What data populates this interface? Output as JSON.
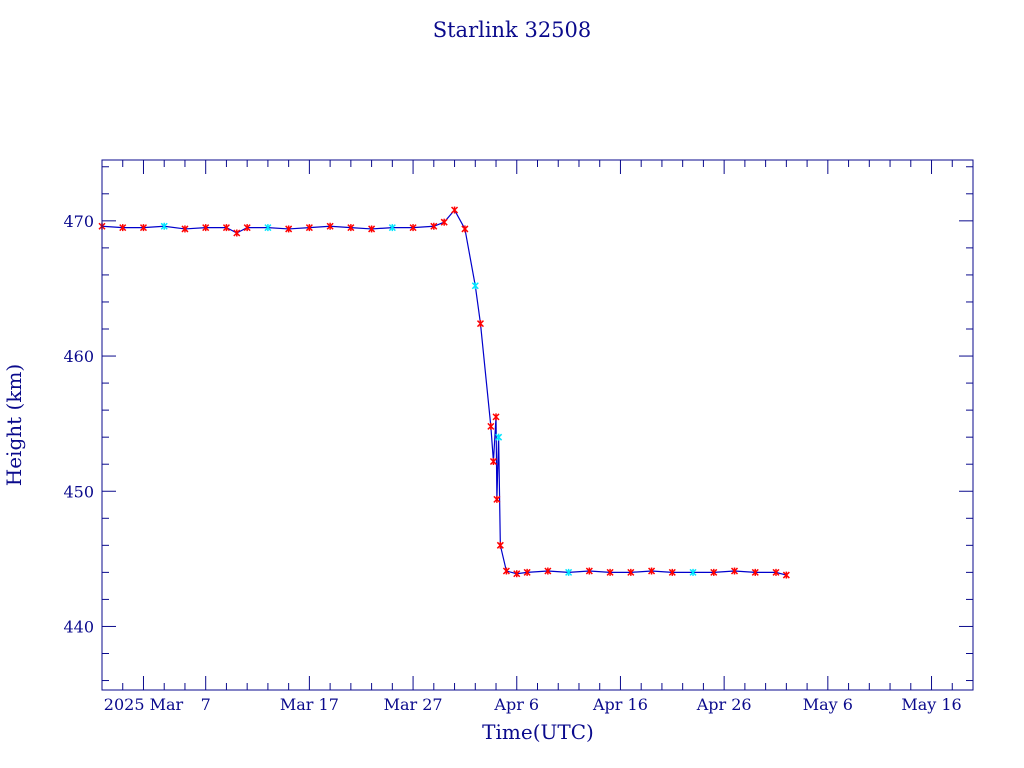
{
  "chart_data": {
    "type": "line",
    "title": "Starlink 32508",
    "xlabel": "Time(UTC)",
    "ylabel": "Height (km)",
    "x_unit": "days",
    "xlim": [
      "2025-02-25",
      "2025-05-20"
    ],
    "ylim": [
      435.3,
      474.5
    ],
    "grid": false,
    "legend": "none",
    "colors": {
      "axes": "#0a0a8c",
      "line": "#0000cc",
      "marker_primary": "#ff0000",
      "marker_secondary": "#00e5ff"
    },
    "x_ticks": [
      {
        "date": "2025-03-01",
        "label": "2025 Mar"
      },
      {
        "date": "2025-03-07",
        "label": "7"
      },
      {
        "date": "2025-03-17",
        "label": "Mar 17"
      },
      {
        "date": "2025-03-27",
        "label": "Mar 27"
      },
      {
        "date": "2025-04-06",
        "label": "Apr  6"
      },
      {
        "date": "2025-04-16",
        "label": "Apr 16"
      },
      {
        "date": "2025-04-26",
        "label": "Apr 26"
      },
      {
        "date": "2025-05-06",
        "label": "May  6"
      },
      {
        "date": "2025-05-16",
        "label": "May 16"
      }
    ],
    "y_ticks": [
      440,
      450,
      460,
      470
    ],
    "series": [
      {
        "points": [
          [
            "2025-02-25",
            469.6
          ],
          [
            "2025-02-27",
            469.5
          ],
          [
            "2025-03-01",
            469.5
          ],
          [
            "2025-03-03",
            469.6
          ],
          [
            "2025-03-05",
            469.4
          ],
          [
            "2025-03-07",
            469.5
          ],
          [
            "2025-03-09",
            469.5
          ],
          [
            "2025-03-10",
            469.1
          ],
          [
            "2025-03-11",
            469.5
          ],
          [
            "2025-03-13",
            469.5
          ],
          [
            "2025-03-15",
            469.4
          ],
          [
            "2025-03-17",
            469.5
          ],
          [
            "2025-03-19",
            469.6
          ],
          [
            "2025-03-21",
            469.5
          ],
          [
            "2025-03-23",
            469.4
          ],
          [
            "2025-03-25",
            469.5
          ],
          [
            "2025-03-27",
            469.5
          ],
          [
            "2025-03-29",
            469.6
          ],
          [
            "2025-03-30",
            469.9
          ],
          [
            "2025-03-31",
            470.8
          ],
          [
            "2025-04-01",
            469.4
          ],
          [
            "2025-04-02",
            465.2
          ],
          [
            "2025-04-02T12:00",
            462.4
          ],
          [
            "2025-04-03T12:00",
            454.8
          ],
          [
            "2025-04-03T18:00",
            452.2
          ],
          [
            "2025-04-04T00:00",
            455.5
          ],
          [
            "2025-04-04T02:00",
            449.4
          ],
          [
            "2025-04-04T06:00",
            454.0
          ],
          [
            "2025-04-04T10:00",
            446.0
          ],
          [
            "2025-04-05",
            444.1
          ],
          [
            "2025-04-06",
            443.9
          ],
          [
            "2025-04-07",
            444.0
          ],
          [
            "2025-04-09",
            444.1
          ],
          [
            "2025-04-11",
            444.0
          ],
          [
            "2025-04-13",
            444.1
          ],
          [
            "2025-04-15",
            444.0
          ],
          [
            "2025-04-17",
            444.0
          ],
          [
            "2025-04-19",
            444.1
          ],
          [
            "2025-04-21",
            444.0
          ],
          [
            "2025-04-23",
            444.0
          ],
          [
            "2025-04-25",
            444.0
          ],
          [
            "2025-04-27",
            444.1
          ],
          [
            "2025-04-29",
            444.0
          ],
          [
            "2025-05-01",
            444.0
          ],
          [
            "2025-05-02",
            443.8
          ]
        ]
      }
    ]
  }
}
